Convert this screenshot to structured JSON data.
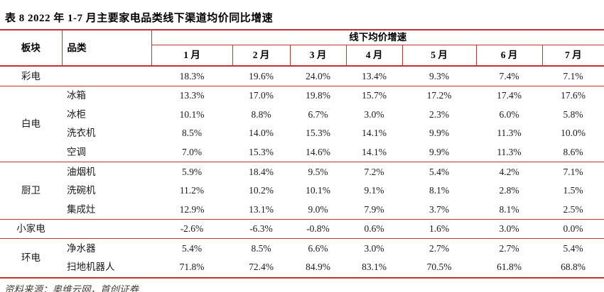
{
  "title": "表  8 2022 年 1-7 月主要家电品类线下渠道均价同比增速",
  "source_note": "资料来源：奥维云网，首创证券",
  "colors": {
    "table_border": "#c13231",
    "body_text": "#1a1a1a",
    "source_text": "#443c38"
  },
  "table": {
    "header": {
      "sector": "板块",
      "category": "品类",
      "value_group": "线下均价增速",
      "months": [
        "1 月",
        "2 月",
        "3 月",
        "4 月",
        "5 月",
        "6 月",
        "7 月"
      ]
    },
    "sections": [
      {
        "sector": "彩电",
        "rows": [
          {
            "category": "",
            "values": [
              "18.3%",
              "19.6%",
              "24.0%",
              "13.4%",
              "9.3%",
              "7.4%",
              "7.1%"
            ]
          }
        ]
      },
      {
        "sector": "白电",
        "rows": [
          {
            "category": "冰箱",
            "values": [
              "13.3%",
              "17.0%",
              "19.8%",
              "15.7%",
              "17.2%",
              "17.4%",
              "17.6%"
            ]
          },
          {
            "category": "冰柜",
            "values": [
              "10.1%",
              "8.8%",
              "6.7%",
              "3.0%",
              "2.3%",
              "6.0%",
              "5.8%"
            ]
          },
          {
            "category": "洗衣机",
            "values": [
              "8.5%",
              "14.0%",
              "15.3%",
              "14.1%",
              "9.9%",
              "11.3%",
              "10.0%"
            ]
          },
          {
            "category": "空调",
            "values": [
              "7.0%",
              "15.3%",
              "14.6%",
              "14.1%",
              "9.9%",
              "11.3%",
              "8.6%"
            ]
          }
        ]
      },
      {
        "sector": "厨卫",
        "rows": [
          {
            "category": "油烟机",
            "values": [
              "5.9%",
              "18.4%",
              "9.5%",
              "7.2%",
              "5.4%",
              "4.2%",
              "7.1%"
            ]
          },
          {
            "category": "洗碗机",
            "values": [
              "11.2%",
              "10.2%",
              "10.1%",
              "9.1%",
              "8.1%",
              "2.8%",
              "1.5%"
            ]
          },
          {
            "category": "集成灶",
            "values": [
              "12.9%",
              "13.1%",
              "9.0%",
              "7.9%",
              "3.7%",
              "8.1%",
              "2.5%"
            ]
          }
        ]
      },
      {
        "sector": "小家电",
        "rows": [
          {
            "category": "",
            "values": [
              "-2.6%",
              "-6.3%",
              "-0.8%",
              "0.6%",
              "1.6%",
              "3.0%",
              "0.0%"
            ]
          }
        ]
      },
      {
        "sector": "环电",
        "rows": [
          {
            "category": "净水器",
            "values": [
              "5.4%",
              "8.5%",
              "6.6%",
              "3.0%",
              "2.7%",
              "2.7%",
              "5.4%"
            ]
          },
          {
            "category": "扫地机器人",
            "values": [
              "71.8%",
              "72.4%",
              "84.9%",
              "83.1%",
              "70.5%",
              "61.8%",
              "68.8%"
            ]
          }
        ]
      }
    ]
  }
}
